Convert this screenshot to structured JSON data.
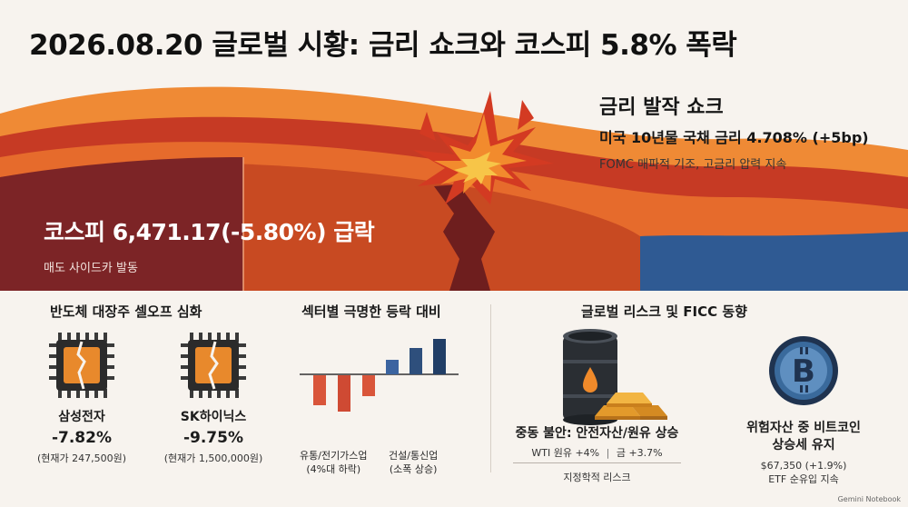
{
  "header": {
    "title": "2026.08.20 글로벌 시황: 금리 쇼크와 코스피 5.8% 폭락"
  },
  "hero": {
    "shock_title": "금리 발작 쇼크",
    "shock_sub": "미국 10년물 국채 금리 4.708% (+5bp)",
    "shock_note": "FOMC 매파적 기조, 고금리 압력 지속",
    "kospi_head": "코스피 6,471.17(-5.80%) 급락",
    "kospi_note": "매도 사이드카 발동"
  },
  "semis": {
    "title": "반도체 대장주 셀오프 심화",
    "stocks": [
      {
        "name": "삼성전자",
        "change": "-7.82%",
        "price": "(현재가 247,500원)",
        "icon": "broken-chip-icon"
      },
      {
        "name": "SK하이닉스",
        "change": "-9.75%",
        "price": "(현재가 1,500,000원)",
        "icon": "broken-chip-icon"
      }
    ]
  },
  "sectors": {
    "title": "섹터별 극명한 등락 대비",
    "down_label_1": "유통/전기가스업",
    "down_label_2": "(4%대 하락)",
    "up_label_1": "건설/통신업",
    "up_label_2": "(소폭 상승)",
    "down_color": "#d9553a",
    "up_color": "#2e4f7c"
  },
  "global": {
    "title": "글로벌 리스크 및 FICC 동향",
    "risk_title": "중동 불안: 안전자산/원유 상승",
    "wti": "WTI 원유 +4%",
    "gold": "금 +3.7%",
    "geo": "지정학적 리스크",
    "btc_title_1": "위험자산 중 비트코인",
    "btc_title_2": "상승세 유지",
    "btc_price": "$67,350 (+1.9%)",
    "btc_note": "ETF 순유입 지속"
  },
  "footer": {
    "watermark": "Gemini Notebook"
  },
  "colors": {
    "dark_red": "#7c2426",
    "orange_red": "#c84a22",
    "orange": "#e8762b",
    "blue": "#2f5a93",
    "background": "#f7f3ee"
  }
}
